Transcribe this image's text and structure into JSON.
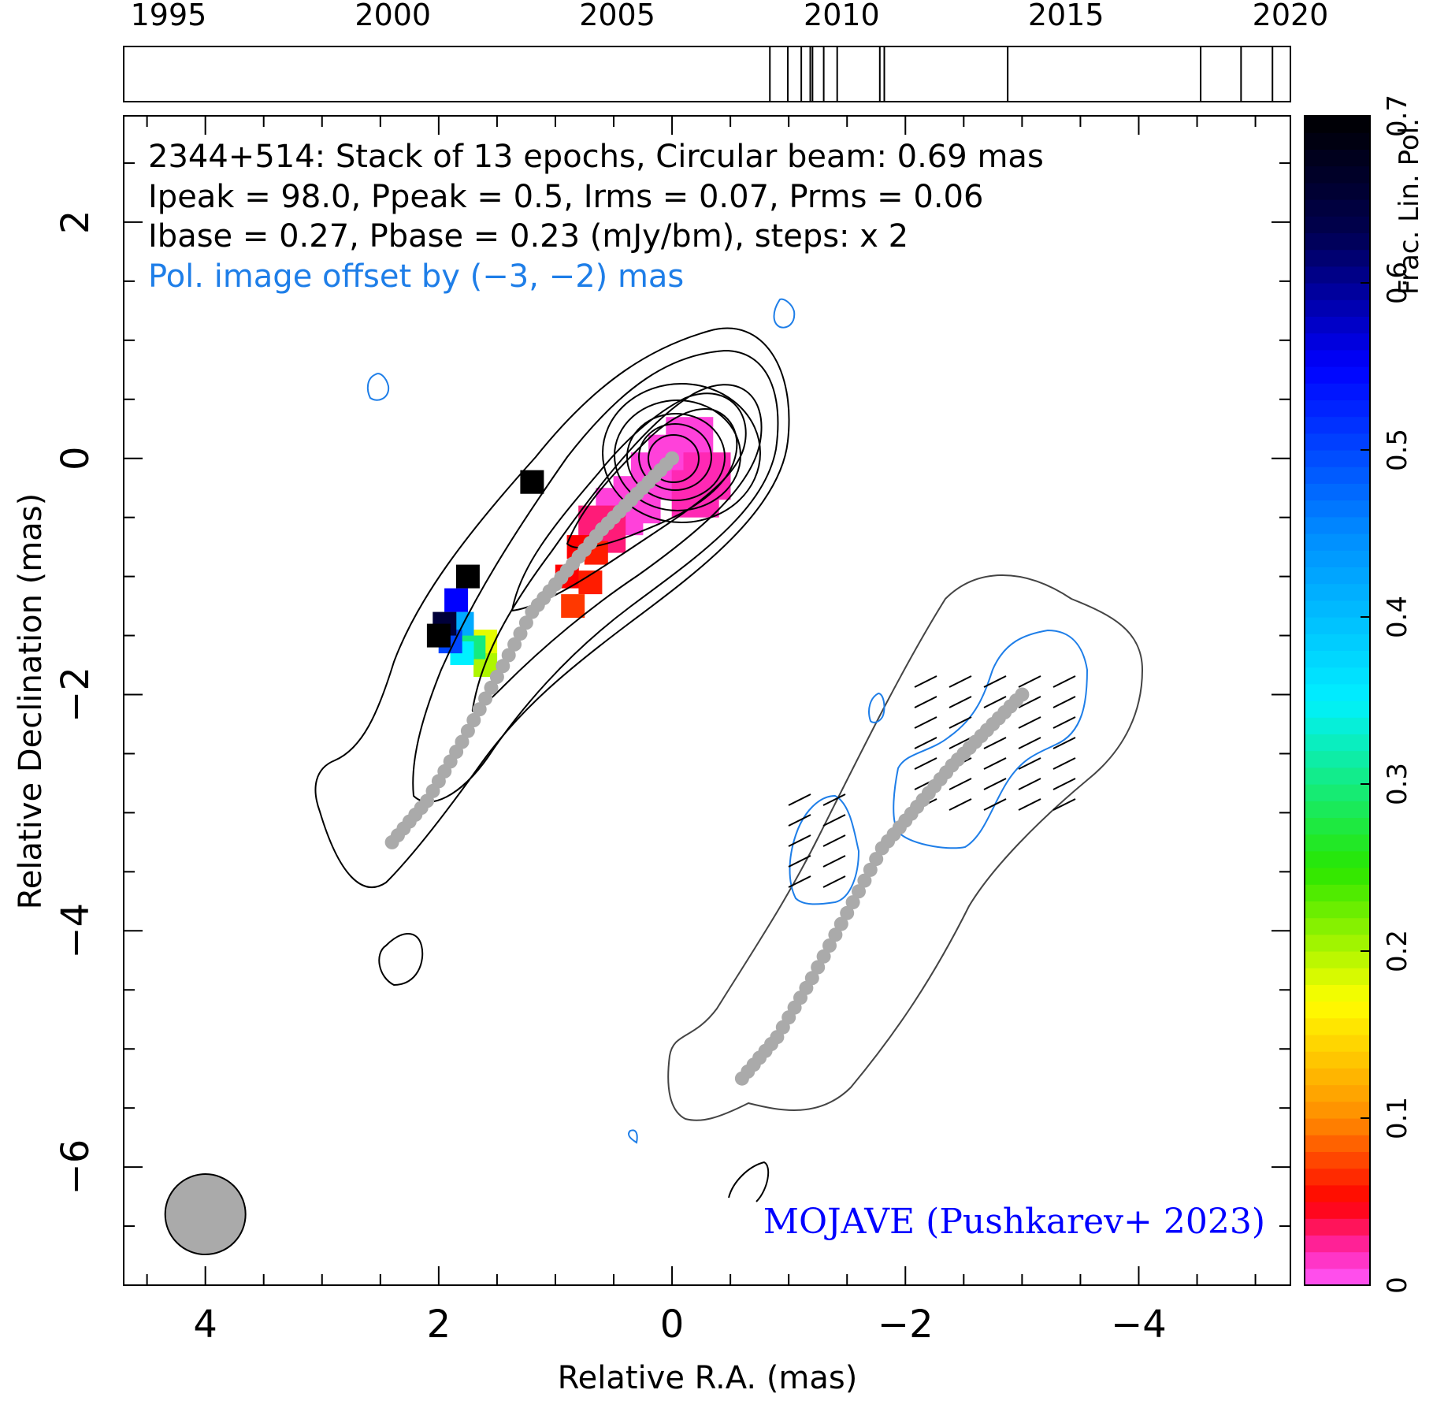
{
  "chart_data": {
    "type": "heatmap",
    "header": {
      "line1": "2344+514: Stack of 13 epochs, Circular beam: 0.69 mas",
      "line2": "Ipeak = 98.0, Ppeak = 0.5, Irms = 0.07, Prms = 0.06",
      "line3": "Ibase = 0.27, Pbase = 0.23 (mJy/bm), steps: x 2",
      "line4": "Pol. image offset by (−3, −2) mas"
    },
    "credit": "MOJAVE (Pushkarev+ 2023)",
    "xlabel": "Relative R.A. (mas)",
    "ylabel": "Relative Declination (mas)",
    "colorbar_label": "Frac. Lin. Pol.",
    "xlim": [
      4.7,
      -5.3
    ],
    "ylim": [
      -7.0,
      2.9
    ],
    "x_ticks": [
      "4",
      "2",
      "0",
      "−2",
      "−4"
    ],
    "x_tick_values": [
      4,
      2,
      0,
      -2,
      -4
    ],
    "y_ticks": [
      "2",
      "0",
      "−2",
      "−4",
      "−6"
    ],
    "y_tick_values": [
      2,
      0,
      -2,
      -4,
      -6
    ],
    "colorbar_ticks": [
      "0",
      "0.1",
      "0.2",
      "0.3",
      "0.4",
      "0.5",
      "0.6",
      "0.7"
    ],
    "colorbar_tick_values": [
      0,
      0.1,
      0.2,
      0.3,
      0.4,
      0.5,
      0.6,
      0.7
    ],
    "colorbar_range": [
      0,
      0.7
    ],
    "timeline": {
      "ticks": [
        "1995",
        "2000",
        "2005",
        "2010",
        "2015",
        "2020"
      ],
      "tick_values": [
        1995,
        2000,
        2005,
        2010,
        2015,
        2020
      ],
      "range": [
        1994.0,
        2020.0
      ],
      "epochs": [
        2008.4,
        2008.8,
        2009.1,
        2009.3,
        2009.35,
        2009.6,
        2009.9,
        2010.85,
        2010.95,
        2013.7,
        2018.0,
        2018.9,
        2019.6
      ]
    },
    "beam": {
      "x": 4.0,
      "y": -6.4,
      "diameter_mas": 0.69
    },
    "ridge_line": {
      "x": [
        2.4,
        2.1,
        1.8,
        1.5,
        1.2,
        0.9,
        0.6,
        0.3,
        0.0
      ],
      "y": [
        -3.25,
        -2.9,
        -2.4,
        -1.85,
        -1.3,
        -0.95,
        -0.6,
        -0.3,
        0.0
      ]
    },
    "ridge_line_offset": {
      "x": [
        -0.6,
        -0.9,
        -1.2,
        -1.5,
        -1.8,
        -2.1,
        -2.4,
        -2.7,
        -3.0
      ],
      "y": [
        -5.25,
        -4.9,
        -4.4,
        -3.85,
        -3.3,
        -2.95,
        -2.6,
        -2.3,
        -2.0
      ]
    },
    "fractional_pol_pixels": [
      {
        "x": 0.0,
        "y": 0.0,
        "v": 0.01
      },
      {
        "x": 0.15,
        "y": -0.15,
        "v": 0.01
      },
      {
        "x": -0.15,
        "y": 0.15,
        "v": 0.01
      },
      {
        "x": -0.3,
        "y": -0.15,
        "v": 0.02
      },
      {
        "x": 0.3,
        "y": -0.35,
        "v": 0.01
      },
      {
        "x": -0.2,
        "y": -0.3,
        "v": 0.02
      },
      {
        "x": 0.45,
        "y": -0.45,
        "v": 0.01
      },
      {
        "x": 0.6,
        "y": -0.6,
        "v": 0.03
      },
      {
        "x": 0.8,
        "y": -0.75,
        "v": 0.05
      },
      {
        "x": 0.65,
        "y": -0.8,
        "v": 0.06
      },
      {
        "x": 0.9,
        "y": -1.0,
        "v": 0.05
      },
      {
        "x": 0.7,
        "y": -1.05,
        "v": 0.06
      },
      {
        "x": 0.85,
        "y": -1.25,
        "v": 0.07
      },
      {
        "x": 1.6,
        "y": -1.55,
        "v": 0.18
      },
      {
        "x": 1.6,
        "y": -1.75,
        "v": 0.2
      },
      {
        "x": 1.7,
        "y": -1.6,
        "v": 0.3
      },
      {
        "x": 1.8,
        "y": -1.4,
        "v": 0.42
      },
      {
        "x": 1.8,
        "y": -1.65,
        "v": 0.35
      },
      {
        "x": 1.85,
        "y": -1.2,
        "v": 0.55
      },
      {
        "x": 1.9,
        "y": -1.55,
        "v": 0.5
      },
      {
        "x": 1.95,
        "y": -1.4,
        "v": 0.65
      },
      {
        "x": 2.0,
        "y": -1.5,
        "v": 0.7
      },
      {
        "x": 1.75,
        "y": -1.0,
        "v": 0.7
      },
      {
        "x": 1.2,
        "y": -0.2,
        "v": 0.7
      }
    ]
  }
}
